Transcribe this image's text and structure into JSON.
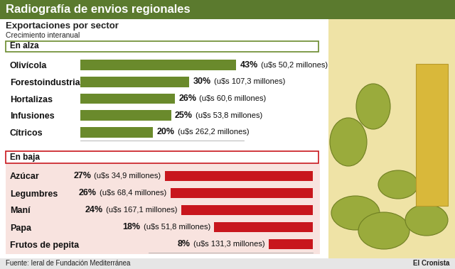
{
  "title": "Radiografía de envios regionales",
  "subtitle": "Exportaciones por sector",
  "caption": "Crecimiento interanual",
  "source": "Fuente: Ieral de Fundación Mediterránea",
  "credit": "El Cronista",
  "chart_data": [
    {
      "type": "bar",
      "title": "En alza",
      "orientation": "horizontal",
      "categories": [
        "Olivícola",
        "Forestoindustria",
        "Hortalizas",
        "Infusiones",
        "Cítricos"
      ],
      "values": [
        43,
        30,
        26,
        25,
        20
      ],
      "value_labels": [
        "43%",
        "30%",
        "26%",
        "25%",
        "20%"
      ],
      "annotations": [
        "(u$s 50,2 millones)",
        "(u$s 107,3 millones)",
        "(u$s 60,6 millones)",
        "(u$s 53,8 millones)",
        "(u$s 262,2 millones)"
      ],
      "color": "#6a8a2c",
      "xlim": [
        0,
        45
      ],
      "tick_labels": "y",
      "data_labels": true
    },
    {
      "type": "bar",
      "title": "En baja",
      "orientation": "horizontal",
      "categories": [
        "Azúcar",
        "Legumbres",
        "Maní",
        "Papa",
        "Frutos de pepita"
      ],
      "values": [
        27,
        26,
        24,
        18,
        8
      ],
      "value_labels": [
        "27%",
        "26%",
        "24%",
        "18%",
        "8%"
      ],
      "annotations": [
        "(u$s 34,9 millones)",
        "(u$s 68,4 millones)",
        "(u$s 167,1 millones)",
        "(u$s 51,8 millones)",
        "(u$s 131,3 millones)"
      ],
      "color": "#c8161d",
      "xlim": [
        30,
        0
      ],
      "tick_labels": "y",
      "data_labels": true
    }
  ]
}
